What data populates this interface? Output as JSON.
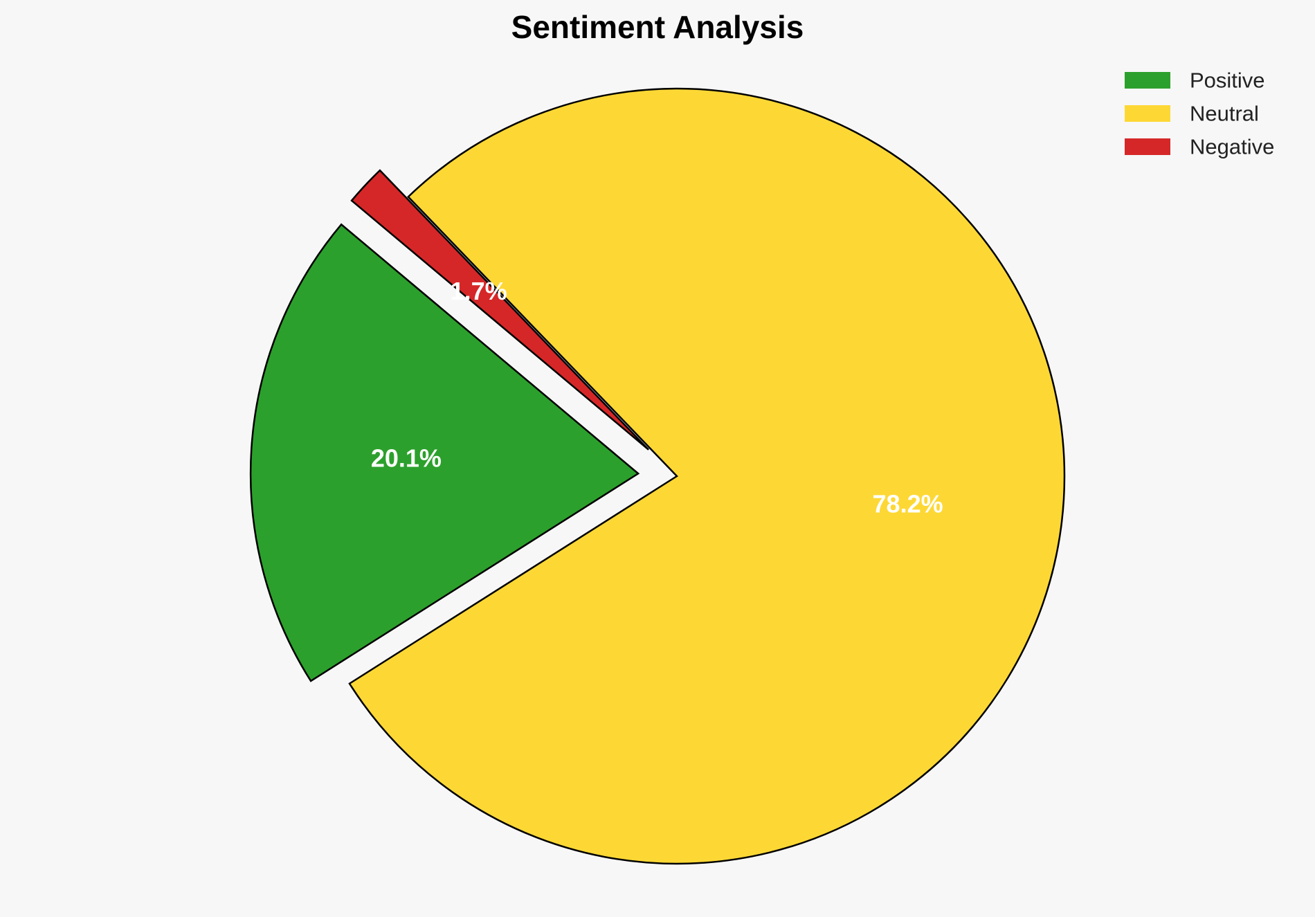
{
  "chart_data": {
    "type": "pie",
    "title": "Sentiment Analysis",
    "categories": [
      "Positive",
      "Neutral",
      "Negative"
    ],
    "values": [
      20.1,
      78.2,
      1.7
    ],
    "labels": [
      "20.1%",
      "78.2%",
      "1.7%"
    ],
    "colors": [
      "#2ca02c",
      "#fdd835",
      "#d62728"
    ],
    "exploded": [
      true,
      false,
      true
    ],
    "start_angle_deg": 140,
    "legend_position": "top-right"
  }
}
